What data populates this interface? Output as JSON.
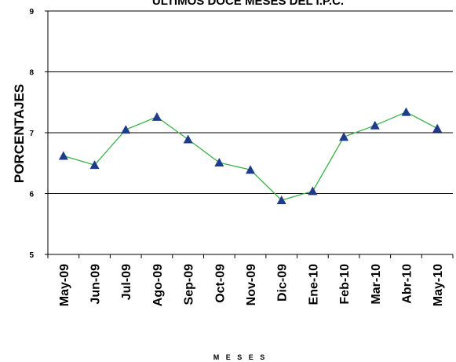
{
  "chart_data": {
    "type": "line",
    "title": "ÚLTIMOS DOCE MESES DEL I.P.C.",
    "xlabel": "M E S E S",
    "ylabel": "PORCENTAJES",
    "ylim": [
      5,
      9
    ],
    "yticks": [
      5,
      6,
      7,
      8,
      9
    ],
    "grid": true,
    "categories": [
      "May-09",
      "Jun-09",
      "Jul-09",
      "Ago-09",
      "Sep-09",
      "Oct-09",
      "Nov-09",
      "Dic-09",
      "Ene-10",
      "Feb-10",
      "Mar-10",
      "Abr-10",
      "May-10"
    ],
    "series": [
      {
        "values": [
          6.62,
          6.47,
          7.05,
          7.26,
          6.89,
          6.51,
          6.39,
          5.89,
          6.04,
          6.93,
          7.12,
          7.34,
          7.07
        ],
        "line_color": "#3cb04a",
        "marker": "triangle",
        "marker_color": "#1f3c8c"
      }
    ]
  }
}
